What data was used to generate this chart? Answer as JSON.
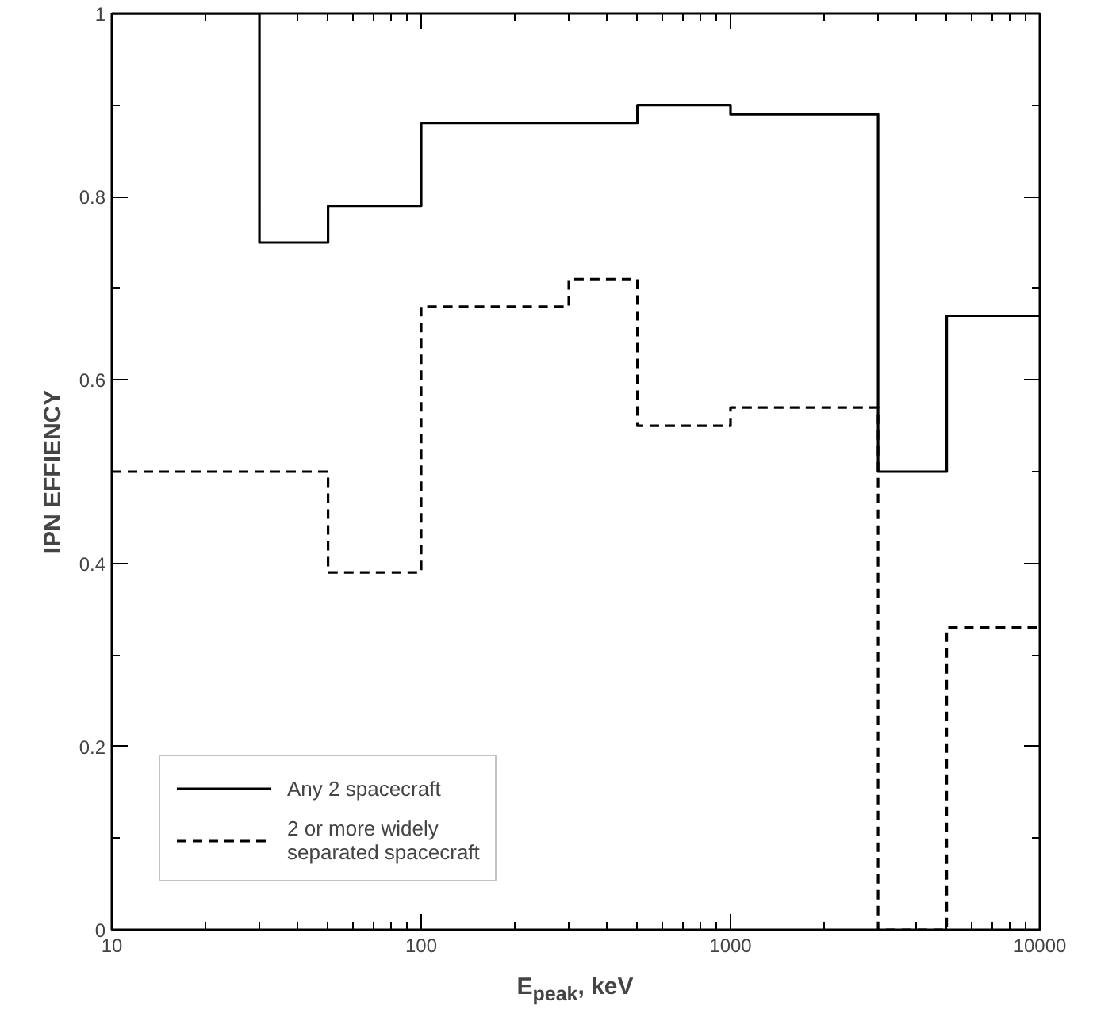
{
  "chart_data": {
    "type": "step",
    "xlabel": "E$_{peak}$, keV",
    "ylabel": "IPN EFFIENCY",
    "log": "x",
    "xlim": [
      10,
      10000
    ],
    "ylim": [
      0,
      1
    ],
    "xticks": [
      10,
      100,
      1000,
      10000
    ],
    "yticks": [
      0,
      0.2,
      0.4,
      0.6,
      0.8,
      1
    ],
    "grid": false,
    "legend": "bottom left",
    "marker": "none",
    "series": [
      {
        "name": "Any 2 spacecraft",
        "color": "#000000",
        "line_style": "solid",
        "x": [
          10,
          30,
          50,
          100,
          500,
          1000,
          3000,
          5000,
          10000
        ],
        "values": [
          1,
          0.75,
          0.79,
          0.88,
          0.9,
          0.89,
          0.5,
          0.67,
          0.67
        ]
      },
      {
        "name": "2 or more widely\nseparated spacecraft",
        "color": "#000000",
        "line_style": "dashed",
        "x": [
          10,
          50,
          100,
          300,
          500,
          1000,
          3000,
          5000,
          10000
        ],
        "values": [
          0.5,
          0.39,
          0.68,
          0.71,
          0.55,
          0.57,
          0,
          0.33,
          0.33
        ]
      }
    ]
  }
}
